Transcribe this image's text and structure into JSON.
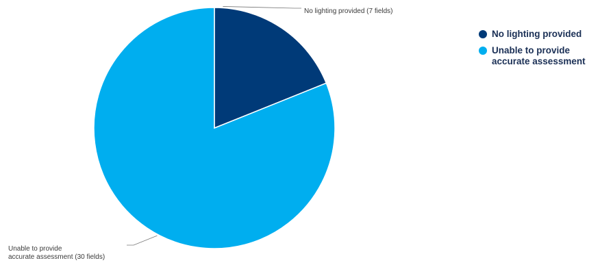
{
  "chart_data": {
    "type": "pie",
    "title": "",
    "categories": [
      "No lighting provided",
      "Unable to provide accurate assessment"
    ],
    "values": [
      7,
      30
    ],
    "unit": "fields",
    "start_angle_deg": 0,
    "direction": "clockwise",
    "colors": [
      "#003a78",
      "#00aeef"
    ],
    "slice_labels": [
      [
        "No lighting provided (7 fields)"
      ],
      [
        "Unable to provide",
        "accurate assessment (30 fields)"
      ]
    ],
    "legend": {
      "placement": "top-right",
      "entries": [
        "No lighting provided",
        "Unable to provide accurate assessment"
      ]
    }
  }
}
